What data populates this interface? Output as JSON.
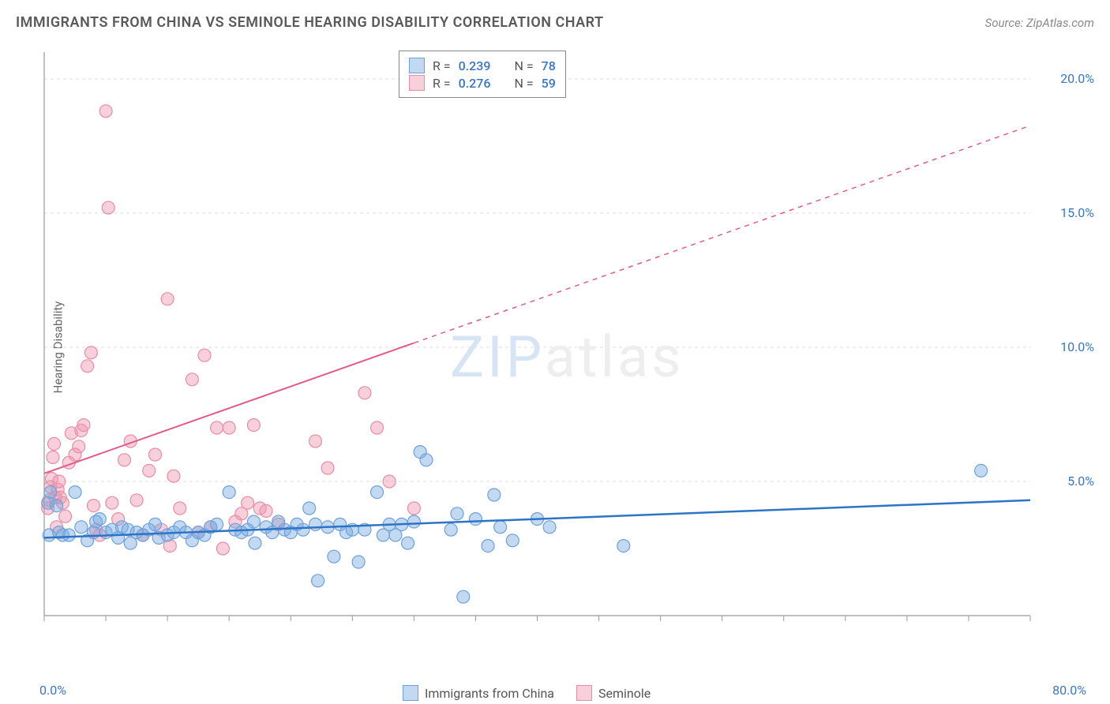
{
  "title": "IMMIGRANTS FROM CHINA VS SEMINOLE HEARING DISABILITY CORRELATION CHART",
  "source": "Source: ZipAtlas.com",
  "ylabel": "Hearing Disability",
  "watermark_a": "ZIP",
  "watermark_b": "atlas",
  "stats": {
    "s1": {
      "r_label": "R =",
      "r": "0.239",
      "n_label": "N =",
      "n": "78"
    },
    "s2": {
      "r_label": "R =",
      "r": "0.276",
      "n_label": "N =",
      "n": "59"
    }
  },
  "legend": {
    "a": "Immigrants from China",
    "b": "Seminole"
  },
  "axis": {
    "x_min": "0.0%",
    "x_max": "80.0%",
    "y_ticks": [
      "5.0%",
      "10.0%",
      "15.0%",
      "20.0%"
    ]
  },
  "chart": {
    "type": "scatter",
    "background": "#ffffff",
    "grid_color": "#dddddd",
    "axis_line_color": "#999999",
    "x_domain": [
      0,
      80
    ],
    "y_domain": [
      0,
      21
    ],
    "y_grid_values": [
      5,
      10,
      15,
      20
    ],
    "x_minor_ticks": [
      0,
      5,
      10,
      15,
      20,
      25,
      30,
      35,
      40,
      45,
      50,
      55,
      60,
      65,
      70,
      75,
      80
    ],
    "series": [
      {
        "name": "Immigrants from China",
        "color_fill": "rgba(120,170,225,0.45)",
        "color_stroke": "#6da1dc",
        "reg_color": "#2d74c6",
        "reg_solid": [
          0,
          80
        ],
        "reg_y": [
          2.9,
          4.3
        ],
        "points": [
          [
            0.3,
            4.2
          ],
          [
            0.4,
            3.0
          ],
          [
            0.5,
            4.6
          ],
          [
            1,
            4.1
          ],
          [
            1.2,
            3.1
          ],
          [
            1.5,
            3.0
          ],
          [
            2,
            3.0
          ],
          [
            2.5,
            4.6
          ],
          [
            3,
            3.3
          ],
          [
            3.5,
            2.8
          ],
          [
            4,
            3.1
          ],
          [
            4.2,
            3.5
          ],
          [
            4.5,
            3.6
          ],
          [
            5,
            3.1
          ],
          [
            5.5,
            3.2
          ],
          [
            6,
            2.9
          ],
          [
            6.3,
            3.3
          ],
          [
            6.8,
            3.2
          ],
          [
            7,
            2.7
          ],
          [
            7.5,
            3.1
          ],
          [
            8,
            3.0
          ],
          [
            8.5,
            3.2
          ],
          [
            9,
            3.4
          ],
          [
            9.3,
            2.9
          ],
          [
            10,
            3.0
          ],
          [
            10.5,
            3.1
          ],
          [
            11,
            3.3
          ],
          [
            11.5,
            3.1
          ],
          [
            12,
            2.8
          ],
          [
            12.5,
            3.1
          ],
          [
            13,
            3.0
          ],
          [
            13.5,
            3.3
          ],
          [
            14,
            3.4
          ],
          [
            15,
            4.6
          ],
          [
            15.5,
            3.2
          ],
          [
            16,
            3.1
          ],
          [
            16.5,
            3.2
          ],
          [
            17,
            3.5
          ],
          [
            17.1,
            2.7
          ],
          [
            18,
            3.3
          ],
          [
            18.5,
            3.1
          ],
          [
            19,
            3.5
          ],
          [
            19.5,
            3.2
          ],
          [
            20,
            3.1
          ],
          [
            20.5,
            3.4
          ],
          [
            21,
            3.2
          ],
          [
            21.5,
            4.0
          ],
          [
            22,
            3.4
          ],
          [
            22.2,
            1.3
          ],
          [
            23,
            3.3
          ],
          [
            23.5,
            2.2
          ],
          [
            24,
            3.4
          ],
          [
            24.5,
            3.1
          ],
          [
            25,
            3.2
          ],
          [
            25.5,
            2.0
          ],
          [
            26,
            3.2
          ],
          [
            27,
            4.6
          ],
          [
            27.5,
            3.0
          ],
          [
            28,
            3.4
          ],
          [
            28.5,
            3.0
          ],
          [
            29,
            3.4
          ],
          [
            29.5,
            2.7
          ],
          [
            30,
            3.5
          ],
          [
            30.5,
            6.1
          ],
          [
            31,
            5.8
          ],
          [
            33,
            3.2
          ],
          [
            33.5,
            3.8
          ],
          [
            34,
            0.7
          ],
          [
            35,
            3.6
          ],
          [
            36,
            2.6
          ],
          [
            36.5,
            4.5
          ],
          [
            37,
            3.3
          ],
          [
            38,
            2.8
          ],
          [
            40,
            3.6
          ],
          [
            41,
            3.3
          ],
          [
            47,
            2.6
          ],
          [
            76,
            5.4
          ]
        ]
      },
      {
        "name": "Seminole",
        "color_fill": "rgba(240,150,175,0.45)",
        "color_stroke": "#e88ca7",
        "reg_color": "#e35a86",
        "reg_solid": [
          0,
          30
        ],
        "reg_dash": [
          30,
          80
        ],
        "reg_y0": 5.3,
        "reg_slope": 0.162,
        "points": [
          [
            0.3,
            4.0
          ],
          [
            0.4,
            4.3
          ],
          [
            0.5,
            4.8
          ],
          [
            0.6,
            5.1
          ],
          [
            0.7,
            5.9
          ],
          [
            0.8,
            6.4
          ],
          [
            0.9,
            4.4
          ],
          [
            1,
            3.3
          ],
          [
            1.1,
            4.7
          ],
          [
            1.2,
            5.0
          ],
          [
            1.3,
            4.4
          ],
          [
            1.5,
            4.2
          ],
          [
            1.7,
            3.7
          ],
          [
            2,
            5.7
          ],
          [
            2.2,
            6.8
          ],
          [
            2.5,
            6.0
          ],
          [
            2.8,
            6.3
          ],
          [
            3,
            6.9
          ],
          [
            3.2,
            7.1
          ],
          [
            3.5,
            9.3
          ],
          [
            3.8,
            9.8
          ],
          [
            4,
            4.1
          ],
          [
            4.2,
            3.2
          ],
          [
            4.5,
            3.0
          ],
          [
            5,
            18.8
          ],
          [
            5.2,
            15.2
          ],
          [
            5.5,
            4.2
          ],
          [
            6,
            3.6
          ],
          [
            6.5,
            5.8
          ],
          [
            7,
            6.5
          ],
          [
            7.5,
            4.3
          ],
          [
            8,
            3.0
          ],
          [
            8.5,
            5.4
          ],
          [
            9,
            6.0
          ],
          [
            9.5,
            3.2
          ],
          [
            10,
            11.8
          ],
          [
            10.2,
            2.6
          ],
          [
            10.5,
            5.2
          ],
          [
            11,
            4.0
          ],
          [
            12,
            8.8
          ],
          [
            12.5,
            3.1
          ],
          [
            13,
            9.7
          ],
          [
            13.5,
            3.3
          ],
          [
            14,
            7.0
          ],
          [
            14.5,
            2.5
          ],
          [
            15,
            7.0
          ],
          [
            15.5,
            3.5
          ],
          [
            16,
            3.8
          ],
          [
            16.5,
            4.2
          ],
          [
            17,
            7.1
          ],
          [
            17.5,
            4.0
          ],
          [
            18,
            3.9
          ],
          [
            19,
            3.4
          ],
          [
            22,
            6.5
          ],
          [
            23,
            5.5
          ],
          [
            26,
            8.3
          ],
          [
            27,
            7.0
          ],
          [
            28,
            5.0
          ],
          [
            30,
            4.0
          ]
        ]
      }
    ]
  }
}
